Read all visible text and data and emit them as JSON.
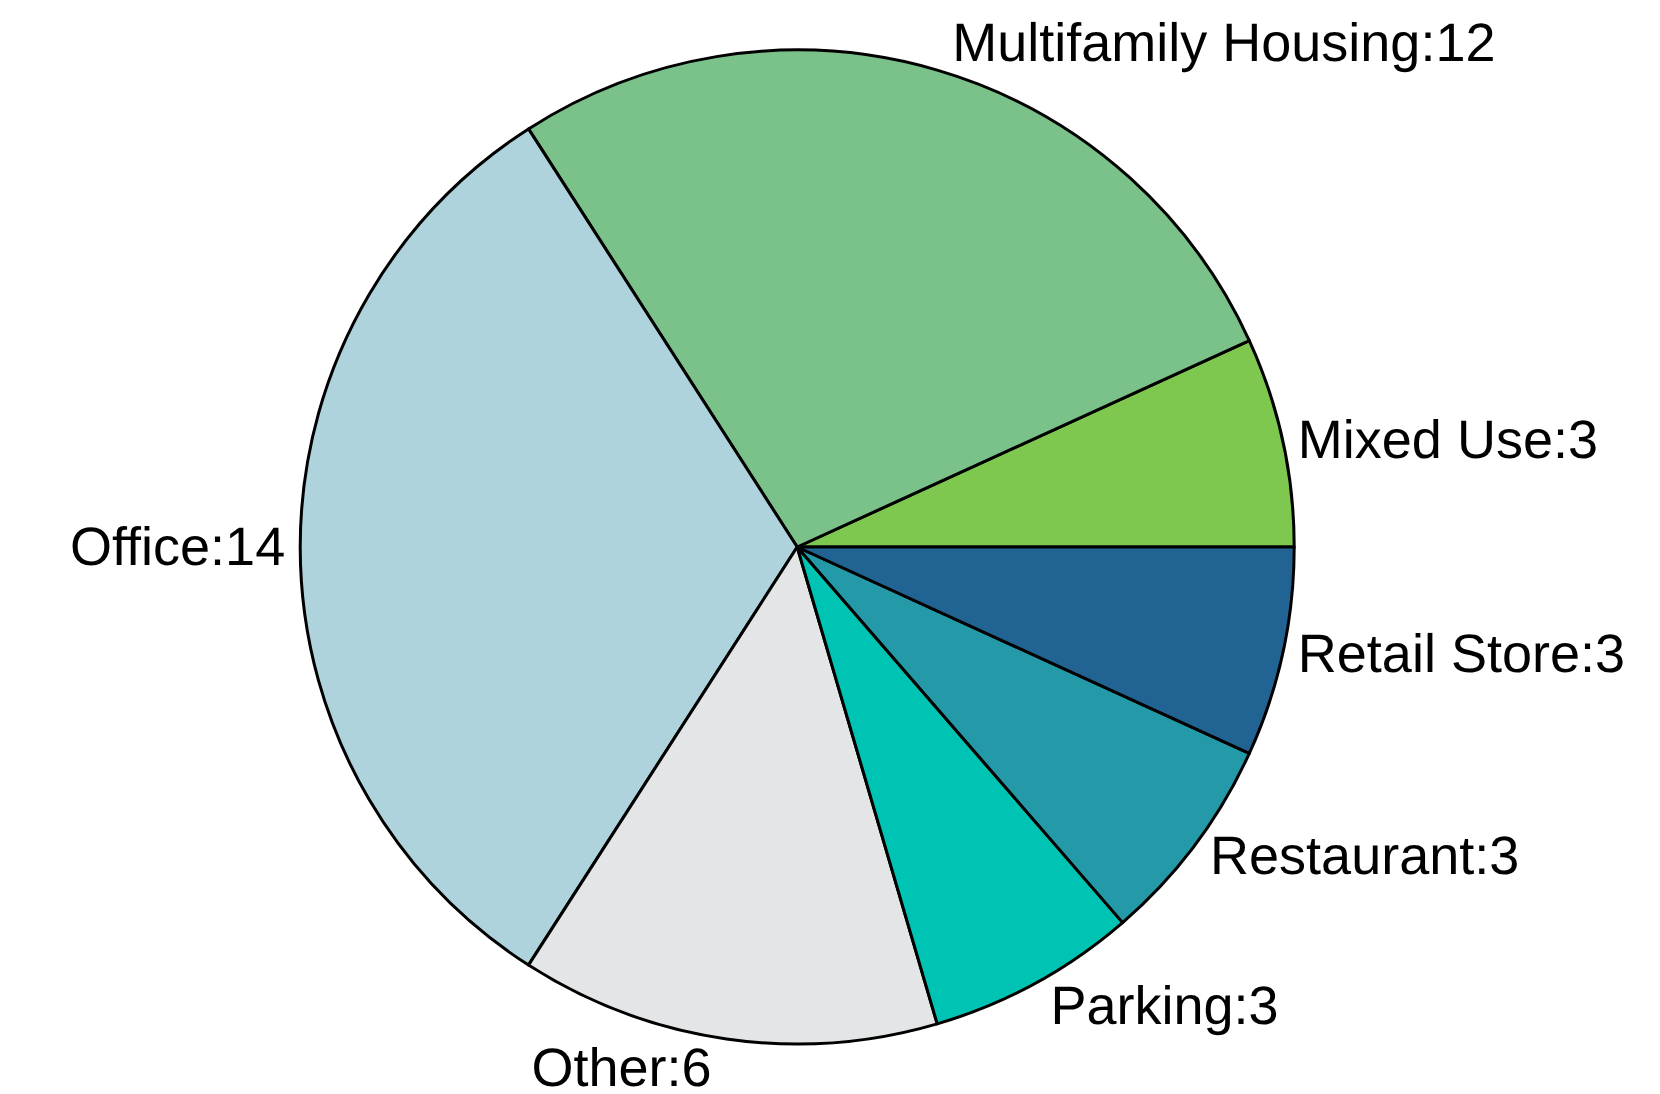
{
  "chart_data": {
    "type": "pie",
    "categories": [
      "Mixed Use:3",
      "Multifamily Housing:12",
      "Office:14",
      "Other:6",
      "Parking:3",
      "Restaurant:3",
      "Retail Store:3"
    ],
    "values": [
      3,
      12,
      14,
      6,
      3,
      3,
      3
    ],
    "colors": [
      "#7ec850",
      "#7bc28a",
      "#aed3dc",
      "#e3e5e7",
      "#00c4b3",
      "#2499a8",
      "#216494"
    ],
    "legend": false
  }
}
